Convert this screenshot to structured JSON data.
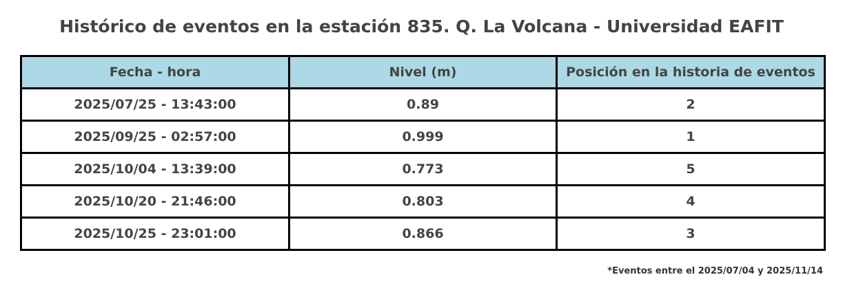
{
  "title": "Histórico de eventos en la estación 835. Q. La Volcana - Universidad EAFIT",
  "table": {
    "header": [
      "Fecha - hora",
      "Nivel (m)",
      "Posición en la historia de eventos"
    ],
    "rows": [
      [
        "2025/07/25 - 13:43:00",
        0.89,
        2
      ],
      [
        "2025/09/25 - 02:57:00",
        0.999,
        1
      ],
      [
        "2025/10/04 - 13:39:00",
        0.773,
        5
      ],
      [
        "2025/10/20 - 21:46:00",
        0.803,
        4
      ],
      [
        "2025/10/25 - 23:01:00",
        0.866,
        3
      ]
    ]
  },
  "footnote": "*Eventos entre el 2025/07/04 y 2025/11/14"
}
